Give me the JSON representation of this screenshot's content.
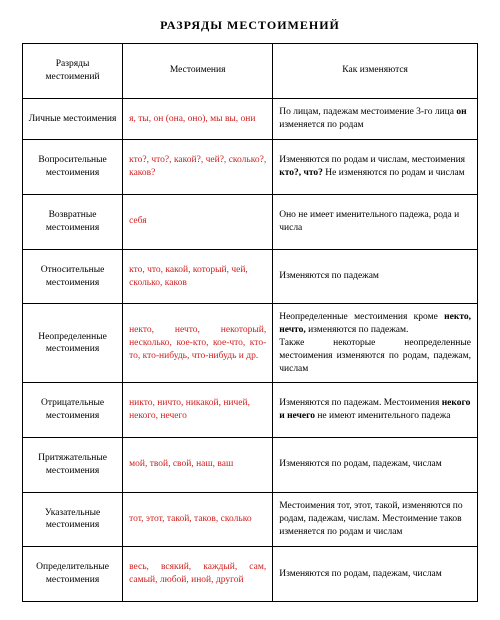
{
  "title": "РАЗРЯДЫ  МЕСТОИМЕНИЙ",
  "headers": {
    "col1": "Разряды местоимений",
    "col2": "Местоимения",
    "col3": "Как изменяются"
  },
  "rows": [
    {
      "cat": "Личные местоимения",
      "pron": "я, ты, он (она, оно), мы вы, они",
      "desc_html": "По лицам, падежам местоимение 3-го лица <span class='b'>он</span> изменяется по родам"
    },
    {
      "cat": "Вопросительные местоимения",
      "pron": "кто?, что?, какой?, чей?, сколько?, каков?",
      "pron_justify": true,
      "desc_html": "Изменяются по родам и числам, местоимения <span class='b'>кто?, что?</span> Не изменяются по родам и числам"
    },
    {
      "cat": "Возвратные местоимения",
      "pron": "себя",
      "desc_html": "Оно не имеет именительного падежа, рода и числа"
    },
    {
      "cat": "Относительные местоимения",
      "pron": "кто, что, какой, который, чей, сколько, каков",
      "desc_html": "Изменяются по падежам"
    },
    {
      "cat": "Неопределенные местоимения",
      "pron": "некто, нечто, некоторый, несколько, кое-кто, кое-что, кто-то, кто-нибудь, что-нибудь и др.",
      "pron_justify": true,
      "desc_html": "Неопределенные местоимения кроме <span class='b'>некто, нечто,</span> изменяются по падежам.<br>Также некоторые неопределенные местоимения изменяются по родам, падежам, числам",
      "desc_justify": true
    },
    {
      "cat": "Отрицательные местоимения",
      "pron": "никто, ничто, никакой, ничей, некого, нечего",
      "desc_html": "Изменяются по падежам. Местоимения <span class='b'>некого и нечего</span> не имеют именительного падежа"
    },
    {
      "cat": "Притяжательные местоимения",
      "pron": "мой, твой, свой, наш, ваш",
      "desc_html": "Изменяются по родам, падежам, числам"
    },
    {
      "cat": "Указательные местоимения",
      "pron": "тот, этот, такой, таков, сколько",
      "desc_html": "Местоимения тот, этот, такой, изменяются по родам, падежам, числам. Местоимение таков изменяется по родам и числам"
    },
    {
      "cat": "Определительные местоимения",
      "pron": "весь, всякий, каждый, сам, самый, любой, иной, другой",
      "pron_justify": true,
      "desc_html": "Изменяются по родам, падежам, числам"
    }
  ],
  "colors": {
    "text": "#000000",
    "pronoun": "#d02020",
    "border": "#000000",
    "background": "#ffffff"
  },
  "font": {
    "family": "Times New Roman",
    "title_size_pt": 12,
    "cell_size_pt": 9.5
  }
}
